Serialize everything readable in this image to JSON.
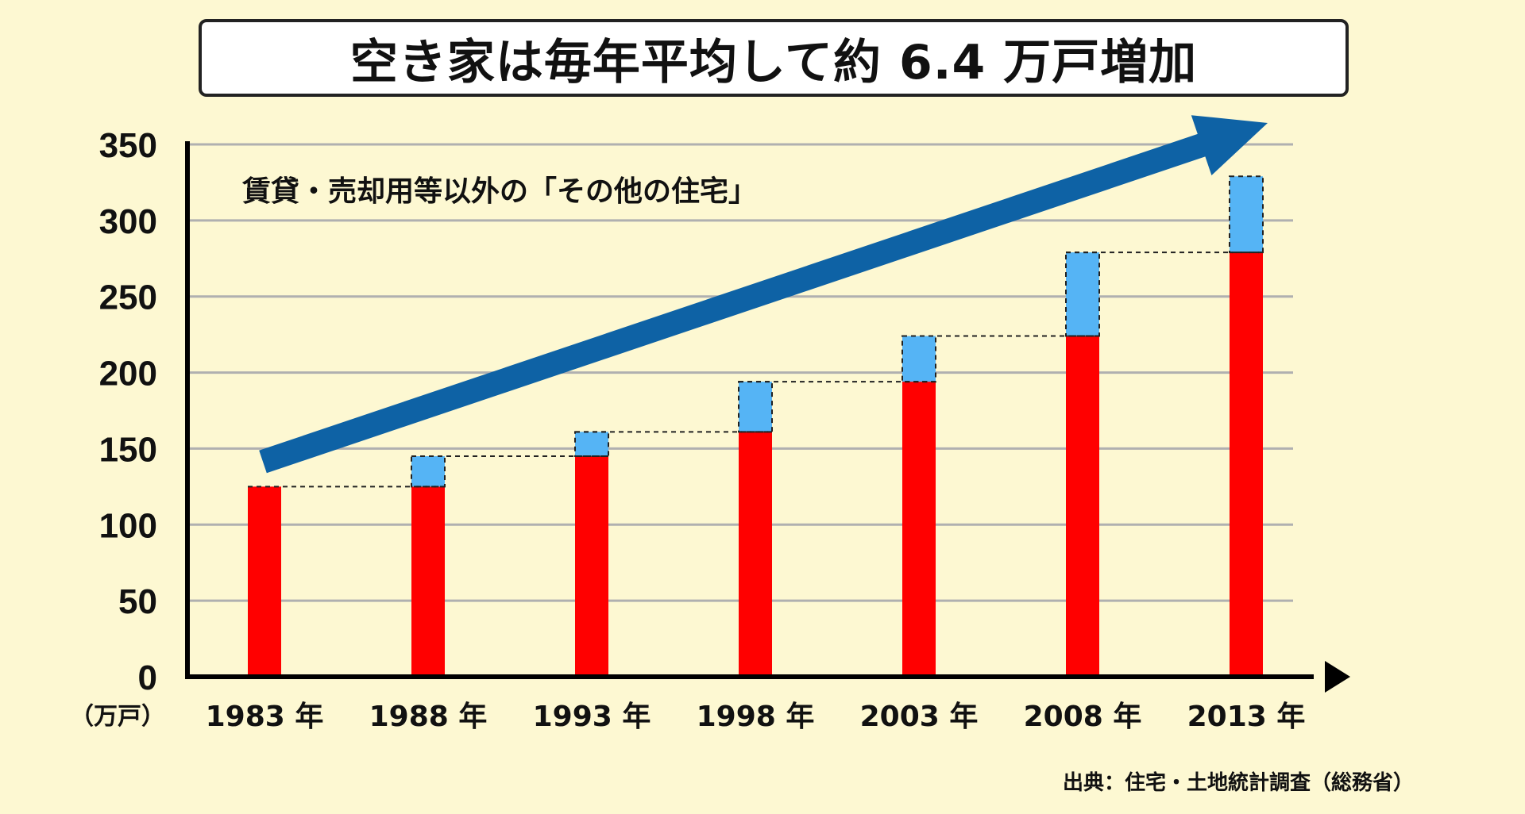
{
  "title": "空き家は毎年平均して約 6.4 万戸増加",
  "subtitle": "賃貸・売却用等以外の「その他の住宅」",
  "unit_label": "（万戸）",
  "source": "出典：住宅・土地統計調査（総務省）",
  "colors": {
    "background": "#fdf8d2",
    "bar_base": "#ff0000",
    "bar_increase": "#55b4f5",
    "trend_arrow": "#0e62a5",
    "grid": "#b0b0b0",
    "axis": "#000000"
  },
  "chart_data": {
    "type": "bar",
    "categories": [
      "1983 年",
      "1988 年",
      "1993 年",
      "1998 年",
      "2003 年",
      "2008 年",
      "2013 年"
    ],
    "values": [
      125,
      145,
      161,
      194,
      224,
      279,
      329
    ],
    "previous_values": [
      null,
      125,
      145,
      161,
      194,
      224,
      279
    ],
    "title": "空き家は毎年平均して約 6.4 万戸増加",
    "ylabel": "（万戸）",
    "ylim": [
      0,
      350
    ],
    "yticks": [
      0,
      50,
      100,
      150,
      200,
      250,
      300,
      350
    ],
    "grid": true,
    "trend_arrow": true
  }
}
